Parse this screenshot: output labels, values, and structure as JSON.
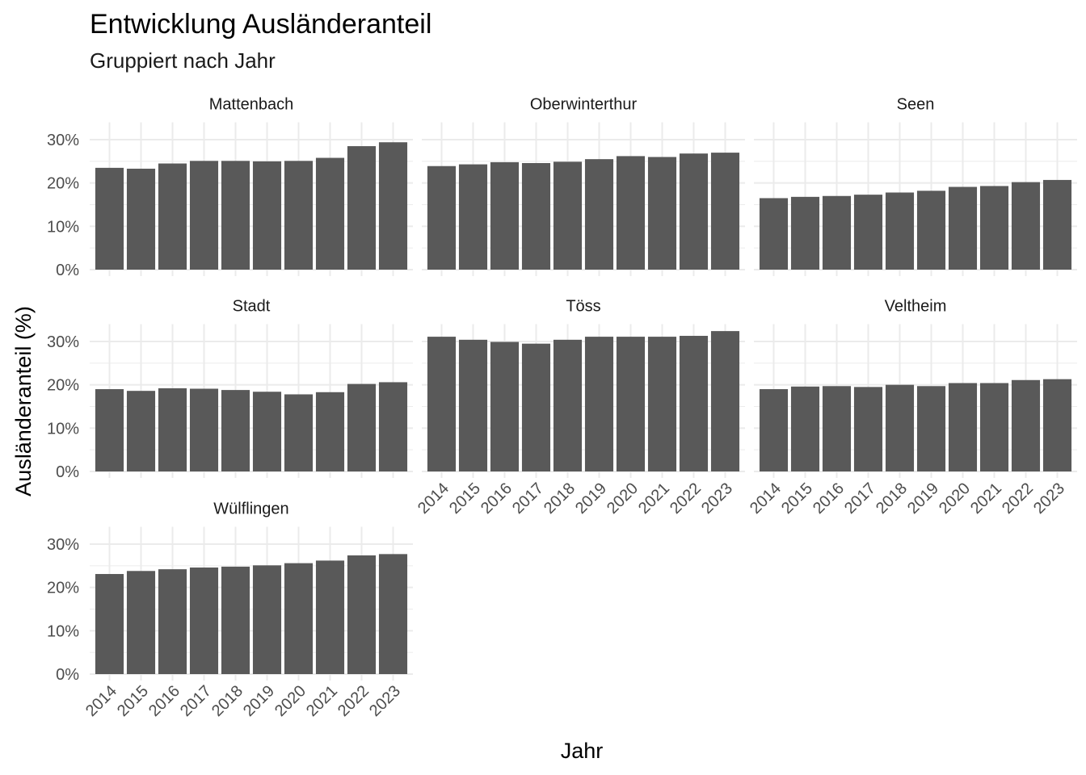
{
  "chart_data": {
    "type": "bar",
    "title": "Entwicklung Ausländeranteil",
    "subtitle": "Gruppiert nach Jahr",
    "xlabel": "Jahr",
    "ylabel": "Ausländeranteil (%)",
    "ylim": [
      0,
      0.34
    ],
    "y_ticks": [
      0,
      0.1,
      0.2,
      0.3
    ],
    "y_tick_labels": [
      "0%",
      "10%",
      "20%",
      "30%"
    ],
    "categories": [
      "2014",
      "2015",
      "2016",
      "2017",
      "2018",
      "2019",
      "2020",
      "2021",
      "2022",
      "2023"
    ],
    "bar_color": "#595959",
    "grid_color": "#ebebeb",
    "grid": true,
    "facets": [
      {
        "name": "Mattenbach",
        "values": [
          0.235,
          0.233,
          0.245,
          0.251,
          0.251,
          0.25,
          0.251,
          0.258,
          0.285,
          0.294
        ]
      },
      {
        "name": "Oberwinterthur",
        "values": [
          0.239,
          0.243,
          0.248,
          0.246,
          0.249,
          0.255,
          0.262,
          0.26,
          0.268,
          0.27
        ]
      },
      {
        "name": "Seen",
        "values": [
          0.165,
          0.168,
          0.17,
          0.173,
          0.178,
          0.182,
          0.191,
          0.193,
          0.202,
          0.207
        ]
      },
      {
        "name": "Stadt",
        "values": [
          0.19,
          0.186,
          0.192,
          0.191,
          0.188,
          0.184,
          0.178,
          0.183,
          0.202,
          0.206
        ]
      },
      {
        "name": "Töss",
        "values": [
          0.311,
          0.304,
          0.299,
          0.295,
          0.304,
          0.311,
          0.311,
          0.311,
          0.313,
          0.324
        ]
      },
      {
        "name": "Veltheim",
        "values": [
          0.19,
          0.196,
          0.197,
          0.195,
          0.2,
          0.197,
          0.204,
          0.204,
          0.211,
          0.213
        ]
      },
      {
        "name": "Wülflingen",
        "values": [
          0.231,
          0.238,
          0.242,
          0.246,
          0.248,
          0.251,
          0.256,
          0.262,
          0.274,
          0.277
        ]
      }
    ]
  }
}
